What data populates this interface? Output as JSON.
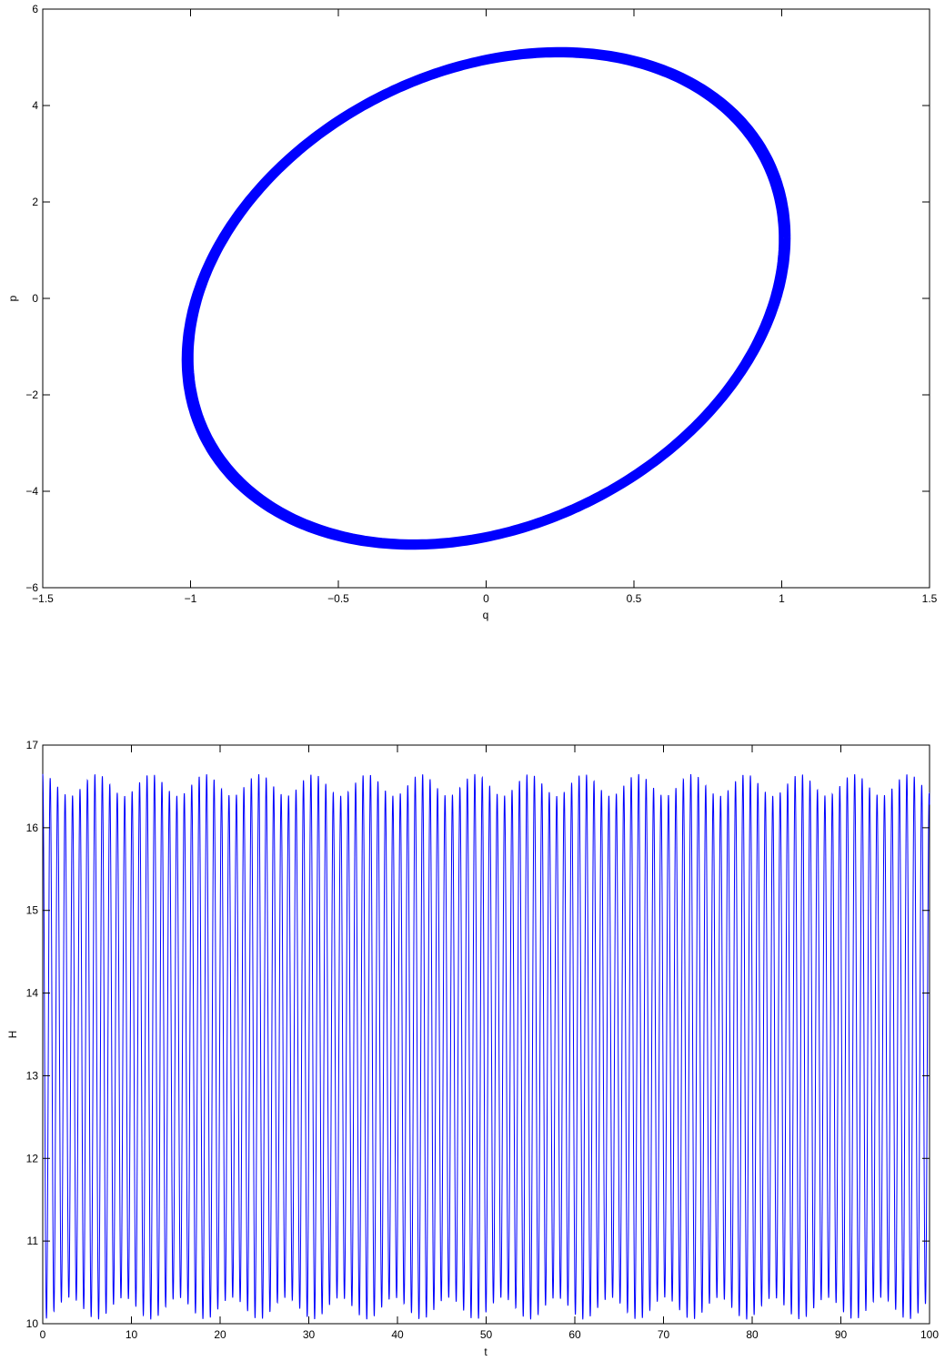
{
  "chart_data": [
    {
      "type": "line",
      "description_free": true,
      "xlabel": "q",
      "ylabel": "p",
      "xlim": [
        -1.5,
        1.5
      ],
      "ylim": [
        -6,
        6
      ],
      "x_ticks": [
        "-1.5",
        "-1",
        "-0.5",
        "0",
        "0.5",
        "1",
        "1.5"
      ],
      "y_ticks": [
        "-6",
        "-4",
        "-2",
        "0",
        "2",
        "4",
        "6"
      ],
      "x_tick_values": [
        -1.5,
        -1,
        -0.5,
        0,
        0.5,
        1,
        1.5
      ],
      "y_tick_values": [
        -6,
        -4,
        -2,
        0,
        2,
        4,
        6
      ],
      "grid": false,
      "color": "#0000ff",
      "series": [
        {
          "x": [
            1.0,
            1.01,
            0.97,
            0.86,
            0.7,
            0.49,
            0.26,
            0.0,
            -0.26,
            -0.49,
            -0.7,
            -0.86,
            -0.97,
            -1.01,
            -1.0,
            -0.98,
            -0.9,
            -0.77,
            -0.6,
            -0.39,
            -0.16,
            0.1,
            0.34,
            0.56,
            0.75,
            0.9,
            1.0
          ],
          "y": [
            0.0,
            1.2,
            2.5,
            3.7,
            4.5,
            4.95,
            5.1,
            4.95,
            4.6,
            4.0,
            3.2,
            2.2,
            1.0,
            -0.2,
            -1.2,
            -2.5,
            -3.7,
            -4.5,
            -4.95,
            -5.1,
            -4.95,
            -4.6,
            -4.0,
            -3.2,
            -2.2,
            -1.0,
            0.0
          ]
        }
      ]
    },
    {
      "type": "line",
      "xlabel": "t",
      "ylabel": "H",
      "xlim": [
        0,
        100
      ],
      "ylim": [
        10,
        17
      ],
      "x_ticks": [
        "0",
        "10",
        "20",
        "30",
        "40",
        "50",
        "60",
        "70",
        "80",
        "90",
        "100"
      ],
      "y_ticks": [
        "10",
        "11",
        "12",
        "13",
        "14",
        "15",
        "16",
        "17"
      ],
      "x_tick_values": [
        0,
        10,
        20,
        30,
        40,
        50,
        60,
        70,
        80,
        90,
        100
      ],
      "y_tick_values": [
        10,
        11,
        12,
        13,
        14,
        15,
        16,
        17
      ],
      "grid": false,
      "color": "#0000ff",
      "series": [
        {
          "oscillation_period": 0.84,
          "min": 10.05,
          "max": 16.65
        }
      ]
    }
  ]
}
